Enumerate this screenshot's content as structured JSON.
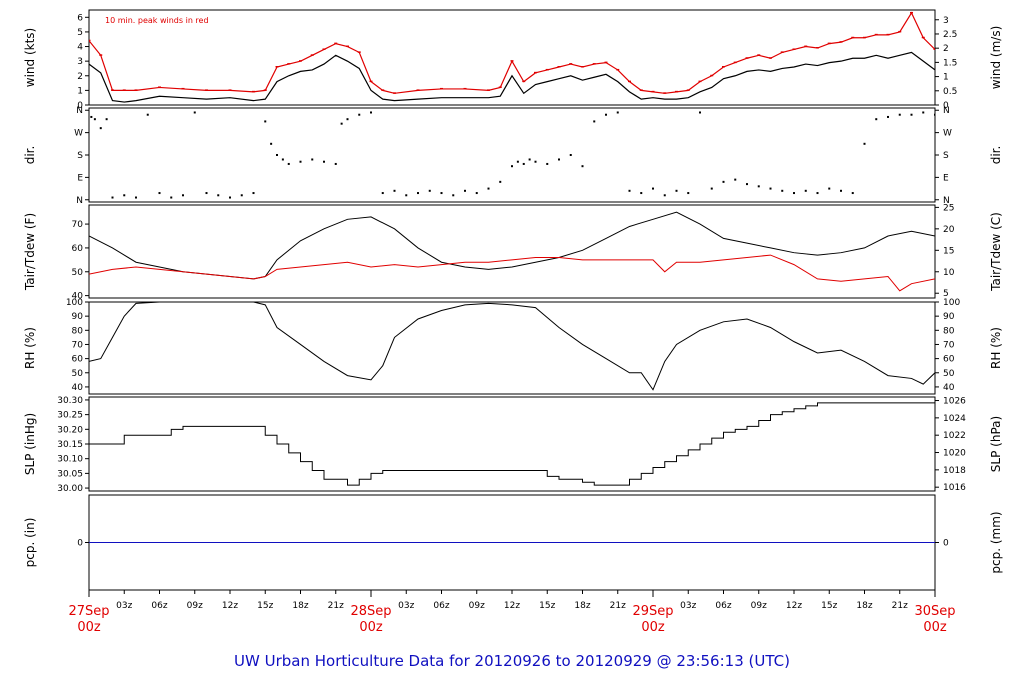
{
  "title": "UW Urban Horticulture Data for 20120926  to  20120929 @ 23:56:13  (UTC)",
  "colors": {
    "black": "#000000",
    "red": "#e00000",
    "blue": "#1010c0"
  },
  "chart_data": [
    {
      "type": "line",
      "id": "wind",
      "ylabel": "wind (kts)",
      "ylabel_right": "wind (m/s)",
      "annotation": "10 min. peak winds in red",
      "ylim": [
        0,
        6.5
      ],
      "yticks": [
        0,
        1,
        2,
        3,
        4,
        5,
        6
      ],
      "yticks_right": [
        "0",
        "0.5",
        "1",
        "1.5",
        "2",
        "2.5",
        "3"
      ],
      "series": [
        {
          "color": "#000000",
          "x": [
            0,
            1,
            2,
            3,
            4,
            6,
            8,
            10,
            12,
            14,
            15,
            16,
            17,
            18,
            19,
            20,
            21,
            22,
            23,
            24,
            25,
            26,
            28,
            30,
            32,
            34,
            35,
            36,
            37,
            38,
            39,
            40,
            41,
            42,
            43,
            44,
            45,
            46,
            47,
            48,
            49,
            50,
            51,
            52,
            53,
            54,
            55,
            56,
            57,
            58,
            59,
            60,
            61,
            62,
            63,
            64,
            65,
            66,
            67,
            68,
            69,
            70,
            71,
            72
          ],
          "y": [
            2.8,
            2.2,
            0.3,
            0.2,
            0.3,
            0.6,
            0.5,
            0.4,
            0.5,
            0.3,
            0.4,
            1.6,
            2.0,
            2.3,
            2.4,
            2.8,
            3.4,
            3.0,
            2.5,
            1.0,
            0.4,
            0.3,
            0.4,
            0.5,
            0.5,
            0.5,
            0.6,
            2.0,
            0.8,
            1.4,
            1.6,
            1.8,
            2.0,
            1.7,
            1.9,
            2.1,
            1.6,
            0.9,
            0.4,
            0.5,
            0.4,
            0.4,
            0.5,
            0.9,
            1.2,
            1.8,
            2.0,
            2.3,
            2.4,
            2.3,
            2.5,
            2.6,
            2.8,
            2.7,
            2.9,
            3.0,
            3.2,
            3.2,
            3.4,
            3.2,
            3.4,
            3.6,
            3.0,
            2.4
          ]
        },
        {
          "color": "#e00000",
          "x": [
            0,
            1,
            2,
            3,
            4,
            6,
            8,
            10,
            12,
            14,
            15,
            16,
            17,
            18,
            19,
            20,
            21,
            22,
            23,
            24,
            25,
            26,
            28,
            30,
            32,
            34,
            35,
            36,
            37,
            38,
            39,
            40,
            41,
            42,
            43,
            44,
            45,
            46,
            47,
            48,
            49,
            50,
            51,
            52,
            53,
            54,
            55,
            56,
            57,
            58,
            59,
            60,
            61,
            62,
            63,
            64,
            65,
            66,
            67,
            68,
            69,
            70,
            71,
            72
          ],
          "y": [
            4.4,
            3.4,
            1.0,
            1.0,
            1.0,
            1.2,
            1.1,
            1.0,
            1.0,
            0.9,
            1.0,
            2.6,
            2.8,
            3.0,
            3.4,
            3.8,
            4.2,
            4.0,
            3.6,
            1.6,
            1.0,
            0.8,
            1.0,
            1.1,
            1.1,
            1.0,
            1.2,
            3.0,
            1.6,
            2.2,
            2.4,
            2.6,
            2.8,
            2.6,
            2.8,
            2.9,
            2.4,
            1.6,
            1.0,
            0.9,
            0.8,
            0.9,
            1.0,
            1.6,
            2.0,
            2.6,
            2.9,
            3.2,
            3.4,
            3.2,
            3.6,
            3.8,
            4.0,
            3.9,
            4.2,
            4.3,
            4.6,
            4.6,
            4.8,
            4.8,
            5.0,
            6.3,
            4.6,
            3.8
          ]
        }
      ]
    },
    {
      "type": "scatter",
      "id": "dir",
      "ylabel": "dir.",
      "ylabel_right": "dir.",
      "ylim": [
        -0.1,
        4.1
      ],
      "yticks": [
        0,
        1,
        2,
        3,
        4
      ],
      "ytick_labels": [
        "N",
        "E",
        "S",
        "W",
        "N"
      ],
      "series": [
        {
          "color": "#000000",
          "x": [
            0.2,
            0.5,
            1,
            1.5,
            2,
            3,
            4,
            5,
            6,
            7,
            8,
            9,
            10,
            11,
            12,
            13,
            14,
            15,
            15.5,
            16,
            16.5,
            17,
            18,
            19,
            20,
            21,
            21.5,
            22,
            23,
            24,
            25,
            26,
            27,
            28,
            29,
            30,
            31,
            32,
            33,
            34,
            35,
            36,
            36.5,
            37,
            37.5,
            38,
            39,
            40,
            41,
            42,
            43,
            44,
            45,
            46,
            47,
            48,
            49,
            50,
            51,
            52,
            53,
            54,
            55,
            56,
            57,
            58,
            59,
            60,
            61,
            62,
            63,
            64,
            65,
            66,
            67,
            68,
            69,
            70,
            71,
            72
          ],
          "y": [
            3.7,
            3.6,
            3.2,
            3.6,
            0.1,
            0.2,
            0.1,
            3.8,
            0.3,
            0.1,
            0.2,
            3.9,
            0.3,
            0.2,
            0.1,
            0.2,
            0.3,
            3.5,
            2.5,
            2.0,
            1.8,
            1.6,
            1.7,
            1.8,
            1.7,
            1.6,
            3.4,
            3.6,
            3.8,
            3.9,
            0.3,
            0.4,
            0.2,
            0.3,
            0.4,
            0.3,
            0.2,
            0.4,
            0.3,
            0.5,
            0.8,
            1.5,
            1.7,
            1.6,
            1.8,
            1.7,
            1.6,
            1.8,
            2.0,
            1.5,
            3.5,
            3.8,
            3.9,
            0.4,
            0.3,
            0.5,
            0.2,
            0.4,
            0.3,
            3.9,
            0.5,
            0.8,
            0.9,
            0.7,
            0.6,
            0.5,
            0.4,
            0.3,
            0.4,
            0.3,
            0.5,
            0.4,
            0.3,
            2.5,
            3.6,
            3.7,
            3.8,
            3.8,
            3.9,
            3.8
          ]
        }
      ]
    },
    {
      "type": "line",
      "id": "temp",
      "ylabel": "Tair/Tdew (F)",
      "ylabel_right": "Tair/Tdew (C)",
      "ylim": [
        39,
        78
      ],
      "yticks": [
        40,
        50,
        60,
        70
      ],
      "yticks_right": [
        "5",
        "10",
        "15",
        "20",
        "25"
      ],
      "series": [
        {
          "color": "#000000",
          "x": [
            0,
            2,
            4,
            6,
            8,
            10,
            12,
            14,
            15,
            16,
            18,
            20,
            22,
            24,
            26,
            28,
            30,
            32,
            34,
            36,
            38,
            40,
            42,
            44,
            46,
            48,
            50,
            52,
            54,
            56,
            58,
            60,
            62,
            64,
            66,
            68,
            70,
            72
          ],
          "y": [
            65,
            60,
            54,
            52,
            50,
            49,
            48,
            47,
            48,
            55,
            63,
            68,
            72,
            73,
            68,
            60,
            54,
            52,
            51,
            52,
            54,
            56,
            59,
            64,
            69,
            72,
            75,
            70,
            64,
            62,
            60,
            58,
            57,
            58,
            60,
            65,
            67,
            65
          ]
        },
        {
          "color": "#e00000",
          "x": [
            0,
            2,
            4,
            6,
            8,
            10,
            12,
            14,
            15,
            16,
            18,
            20,
            22,
            24,
            26,
            28,
            30,
            32,
            34,
            36,
            38,
            40,
            42,
            44,
            46,
            48,
            49,
            50,
            52,
            54,
            56,
            58,
            60,
            62,
            64,
            66,
            68,
            69,
            70,
            72
          ],
          "y": [
            49,
            51,
            52,
            51,
            50,
            49,
            48,
            47,
            48,
            51,
            52,
            53,
            54,
            52,
            53,
            52,
            53,
            54,
            54,
            55,
            56,
            56,
            55,
            55,
            55,
            55,
            50,
            54,
            54,
            55,
            56,
            57,
            53,
            47,
            46,
            47,
            48,
            42,
            45,
            47
          ]
        }
      ]
    },
    {
      "type": "line",
      "id": "rh",
      "ylabel": "RH (%)",
      "ylabel_right": "RH (%)",
      "ylim": [
        35,
        100
      ],
      "yticks": [
        40,
        50,
        60,
        70,
        80,
        90,
        100
      ],
      "series": [
        {
          "color": "#000000",
          "x": [
            0,
            1,
            2,
            3,
            4,
            6,
            8,
            10,
            12,
            14,
            15,
            16,
            18,
            20,
            22,
            24,
            25,
            26,
            28,
            30,
            32,
            34,
            36,
            38,
            40,
            42,
            44,
            46,
            47,
            48,
            49,
            50,
            52,
            54,
            56,
            58,
            60,
            62,
            64,
            66,
            68,
            70,
            71,
            72
          ],
          "y": [
            58,
            60,
            75,
            90,
            99,
            100,
            100,
            100,
            100,
            100,
            98,
            82,
            70,
            58,
            48,
            45,
            55,
            75,
            88,
            94,
            98,
            99,
            98,
            96,
            82,
            70,
            60,
            50,
            50,
            38,
            58,
            70,
            80,
            86,
            88,
            82,
            72,
            64,
            66,
            58,
            48,
            46,
            42,
            50
          ]
        }
      ]
    },
    {
      "type": "line",
      "id": "slp",
      "ylabel": "SLP (inHg)",
      "ylabel_right": "SLP (hPa)",
      "ylim": [
        29.99,
        30.31
      ],
      "yticks": [
        30.0,
        30.05,
        30.1,
        30.15,
        30.2,
        30.25,
        30.3
      ],
      "ytick_labels": [
        "30.00",
        "30.05",
        "30.10",
        "30.15",
        "30.20",
        "30.25",
        "30.30"
      ],
      "yticks_right": [
        "1016",
        "1018",
        "1020",
        "1022",
        "1024",
        "1026"
      ],
      "series": [
        {
          "color": "#000000",
          "x": [
            0,
            3,
            6,
            7,
            8,
            10,
            12,
            14,
            15,
            16,
            17,
            18,
            19,
            20,
            21,
            22,
            23,
            24,
            25,
            26,
            27,
            28,
            29,
            30,
            31,
            32,
            33,
            34,
            35,
            36,
            37,
            38,
            39,
            40,
            41,
            42,
            43,
            44,
            45,
            46,
            47,
            48,
            49,
            50,
            51,
            52,
            53,
            54,
            55,
            56,
            57,
            58,
            59,
            60,
            61,
            62,
            63,
            64,
            65,
            66,
            67,
            68,
            69,
            70,
            71,
            72
          ],
          "y": [
            30.15,
            30.18,
            30.18,
            30.2,
            30.21,
            30.21,
            30.21,
            30.21,
            30.18,
            30.15,
            30.12,
            30.09,
            30.06,
            30.03,
            30.03,
            30.01,
            30.03,
            30.05,
            30.06,
            30.06,
            30.06,
            30.06,
            30.06,
            30.06,
            30.06,
            30.06,
            30.06,
            30.06,
            30.06,
            30.06,
            30.06,
            30.06,
            30.04,
            30.03,
            30.03,
            30.02,
            30.01,
            30.01,
            30.01,
            30.03,
            30.05,
            30.07,
            30.09,
            30.11,
            30.13,
            30.15,
            30.17,
            30.19,
            30.2,
            30.21,
            30.23,
            30.25,
            30.26,
            30.27,
            30.28,
            30.29,
            30.29,
            30.29,
            30.29,
            30.29,
            30.29,
            30.29,
            30.29,
            30.29,
            30.29,
            30.29
          ]
        }
      ]
    },
    {
      "type": "line",
      "id": "pcp",
      "ylabel": "pcp. (in)",
      "ylabel_right": "pcp. (mm)",
      "ylim": [
        -1,
        1
      ],
      "yticks": [
        0
      ],
      "yticks_right": [
        "0"
      ],
      "series": [
        {
          "color": "#1010c0",
          "x": [
            0,
            72
          ],
          "y": [
            0,
            0
          ]
        }
      ]
    }
  ],
  "x_axis": {
    "range": [
      0,
      72
    ],
    "hour_ticks": [
      "03z",
      "06z",
      "09z",
      "12z",
      "15z",
      "18z",
      "21z",
      "03z",
      "06z",
      "09z",
      "12z",
      "15z",
      "18z",
      "21z",
      "03z",
      "06z",
      "09z",
      "12z",
      "15z",
      "18z",
      "21z"
    ],
    "hour_tick_x": [
      3,
      6,
      9,
      12,
      15,
      18,
      21,
      27,
      30,
      33,
      36,
      39,
      42,
      45,
      51,
      54,
      57,
      60,
      63,
      66,
      69
    ],
    "day_labels": [
      {
        "x": 0,
        "line1": "27Sep",
        "line2": "00z"
      },
      {
        "x": 24,
        "line1": "28Sep",
        "line2": "00z"
      },
      {
        "x": 48,
        "line1": "29Sep",
        "line2": "00z"
      },
      {
        "x": 72,
        "line1": "30Sep",
        "line2": "00z"
      }
    ]
  }
}
